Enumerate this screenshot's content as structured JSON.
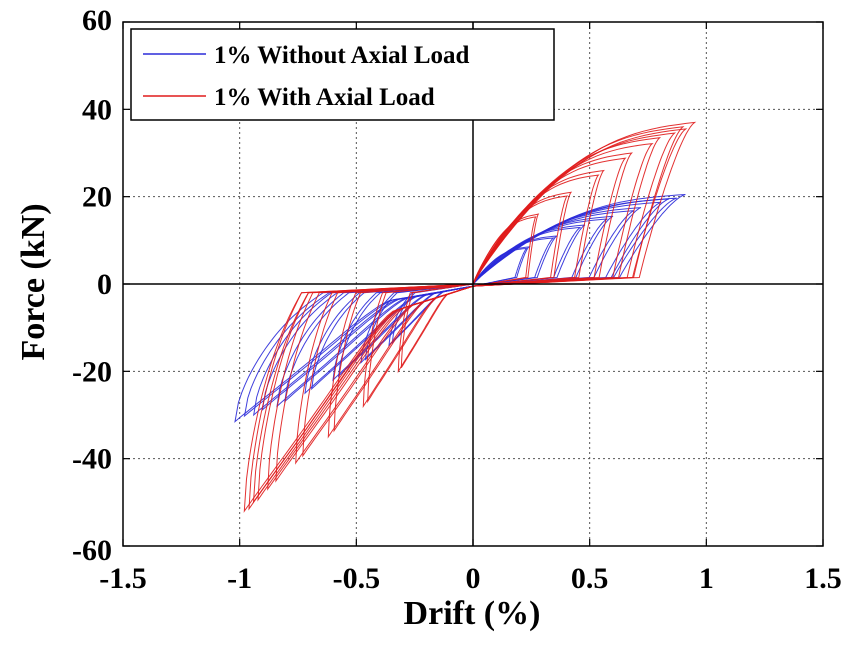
{
  "chart_data": {
    "type": "line",
    "title": "",
    "xlabel": "Drift (%)",
    "ylabel": "Force (kN)",
    "xlim": [
      -1.5,
      1.5
    ],
    "ylim": [
      -60,
      60
    ],
    "xticks": [
      -1.5,
      -1,
      -0.5,
      0,
      0.5,
      1,
      1.5
    ],
    "yticks": [
      -60,
      -40,
      -20,
      0,
      20,
      40,
      60
    ],
    "xtick_labels": [
      "-1.5",
      "-1",
      "-0.5",
      "0",
      "0.5",
      "1",
      "1.5"
    ],
    "ytick_labels": [
      "-60",
      "-40",
      "-20",
      "0",
      "20",
      "40",
      "60"
    ],
    "grid": true,
    "legend_position": "top-left",
    "series": [
      {
        "name": "1% Without Axial Load",
        "color": "#2b2bd9",
        "cycles": [
          {
            "amp_pos": 0.24,
            "f_pos": 8.5,
            "amp_neg": -0.36,
            "f_neg": -14
          },
          {
            "amp_pos": 0.36,
            "f_pos": 11,
            "amp_neg": -0.48,
            "f_neg": -18
          },
          {
            "amp_pos": 0.48,
            "f_pos": 13.5,
            "amp_neg": -0.6,
            "f_neg": -22
          },
          {
            "amp_pos": 0.6,
            "f_pos": 15.5,
            "amp_neg": -0.72,
            "f_neg": -25
          },
          {
            "amp_pos": 0.72,
            "f_pos": 17.5,
            "amp_neg": -0.84,
            "f_neg": -28
          },
          {
            "amp_pos": 0.84,
            "f_pos": 19.5,
            "amp_neg": -0.94,
            "f_neg": -30
          },
          {
            "amp_pos": 0.91,
            "f_pos": 20.5,
            "amp_neg": -1.02,
            "f_neg": -31.5
          }
        ]
      },
      {
        "name": "1% With Axial Load",
        "color": "#e01c1c",
        "cycles": [
          {
            "amp_pos": 0.28,
            "f_pos": 16,
            "amp_neg": -0.32,
            "f_neg": -20
          },
          {
            "amp_pos": 0.42,
            "f_pos": 21,
            "amp_neg": -0.47,
            "f_neg": -28
          },
          {
            "amp_pos": 0.56,
            "f_pos": 26,
            "amp_neg": -0.62,
            "f_neg": -35
          },
          {
            "amp_pos": 0.68,
            "f_pos": 30,
            "amp_neg": -0.76,
            "f_neg": -41
          },
          {
            "amp_pos": 0.8,
            "f_pos": 33.5,
            "amp_neg": -0.88,
            "f_neg": -47
          },
          {
            "amp_pos": 0.9,
            "f_pos": 36,
            "amp_neg": -0.96,
            "f_neg": -51.5
          },
          {
            "amp_pos": 0.95,
            "f_pos": 37,
            "amp_neg": -0.98,
            "f_neg": -52
          }
        ]
      }
    ]
  }
}
